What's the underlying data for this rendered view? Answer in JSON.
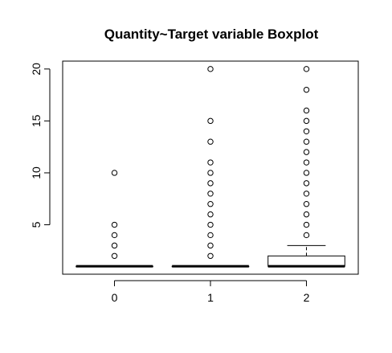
{
  "chart_data": {
    "type": "boxplot",
    "title": "Quantity~Target variable Boxplot",
    "xlabel": "",
    "ylabel": "",
    "categories": [
      "0",
      "1",
      "2"
    ],
    "y_ticks": [
      5,
      10,
      15,
      20
    ],
    "ylim": [
      0.24,
      20.76
    ],
    "boxes": [
      {
        "category": "0",
        "whisker_low": 1,
        "q1": 1,
        "median": 1,
        "q3": 1,
        "whisker_high": 1,
        "outliers": [
          2,
          3,
          4,
          5,
          10
        ]
      },
      {
        "category": "1",
        "whisker_low": 1,
        "q1": 1,
        "median": 1,
        "q3": 1,
        "whisker_high": 1,
        "outliers": [
          2,
          3,
          4,
          5,
          6,
          7,
          8,
          9,
          10,
          11,
          13,
          15,
          20
        ]
      },
      {
        "category": "2",
        "whisker_low": 1,
        "q1": 1,
        "median": 1,
        "q3": 2,
        "whisker_high": 3,
        "outliers": [
          4,
          5,
          6,
          7,
          8,
          9,
          10,
          11,
          12,
          13,
          14,
          15,
          16,
          18,
          20
        ]
      }
    ],
    "grid": false,
    "legend": "none",
    "colors": {
      "box_fill": "#ffffff",
      "stroke": "#000000",
      "background": "#ffffff"
    }
  }
}
